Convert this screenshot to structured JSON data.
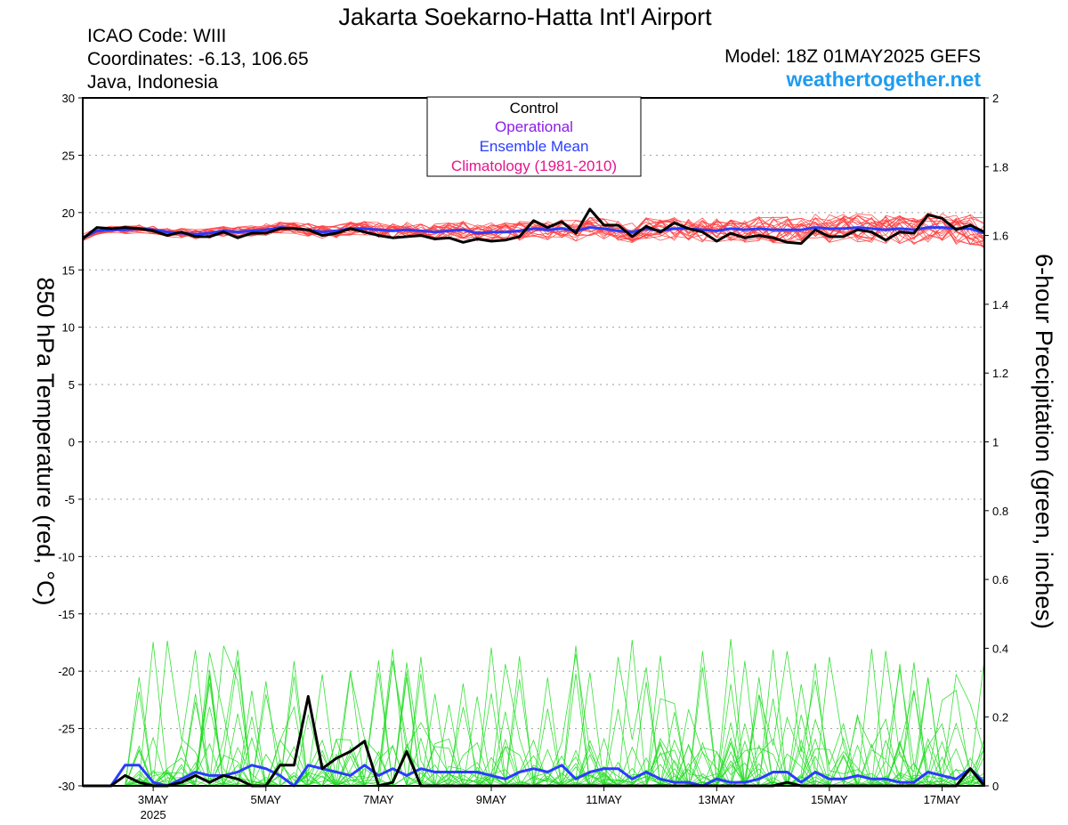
{
  "header": {
    "title": "Jakarta Soekarno-Hatta Int'l Airport",
    "icao": "ICAO Code: WIII",
    "coordinates": "Coordinates: -6.13, 106.65",
    "region": "Java, Indonesia",
    "model": "Model: 18Z 01MAY2025 GEFS",
    "site": "weathertogether.net"
  },
  "colors": {
    "control": "#000000",
    "operational": "#8a1ee8",
    "ensemble_mean": "#2a3cff",
    "climatology": "#e8148c",
    "temperature_members": "#ff4040",
    "precip_members": "#22dd22",
    "site": "#1e9cf0"
  },
  "legend": {
    "items": [
      {
        "label": "Control",
        "color": "#000000"
      },
      {
        "label": "Operational",
        "color": "#8a1ee8"
      },
      {
        "label": "Ensemble Mean",
        "color": "#2a3cff"
      },
      {
        "label": "Climatology (1981-2010)",
        "color": "#e8148c"
      }
    ]
  },
  "chart_data": {
    "type": "line",
    "x_unit": "days",
    "x_range_day": [
      1.75,
      17.75
    ],
    "x_ticks": [
      {
        "day": 3,
        "label": "3MAY",
        "sublabel": "2025"
      },
      {
        "day": 5,
        "label": "5MAY",
        "sublabel": ""
      },
      {
        "day": 7,
        "label": "7MAY",
        "sublabel": ""
      },
      {
        "day": 9,
        "label": "9MAY",
        "sublabel": ""
      },
      {
        "day": 11,
        "label": "11MAY",
        "sublabel": ""
      },
      {
        "day": 13,
        "label": "13MAY",
        "sublabel": ""
      },
      {
        "day": 15,
        "label": "15MAY",
        "sublabel": ""
      },
      {
        "day": 17,
        "label": "17MAY",
        "sublabel": ""
      }
    ],
    "y_left": {
      "label": "850 hPa Temperature (red, °C)",
      "range": [
        -30,
        30
      ],
      "ticks": [
        -30,
        -25,
        -20,
        -15,
        -10,
        -5,
        0,
        5,
        10,
        15,
        20,
        25,
        30
      ]
    },
    "y_right": {
      "label": "6-hour Precipitation (green, inches)",
      "range": [
        0,
        2
      ],
      "ticks": [
        "0",
        "0.2",
        "0.4",
        "0.6",
        "0.8",
        "1",
        "1.2",
        "1.4",
        "1.6",
        "1.8",
        "2"
      ]
    },
    "grid": "horizontal dotted",
    "legend_position": "top-center",
    "series": [
      {
        "name": "Control",
        "axis": "left",
        "start_day": 1.75,
        "step_days": 0.25,
        "values": [
          17.7,
          18.7,
          18.6,
          18.7,
          18.6,
          18.4,
          18.0,
          18.3,
          17.9,
          17.9,
          18.3,
          17.8,
          18.2,
          18.2,
          18.6,
          18.6,
          18.5,
          18.0,
          18.2,
          18.6,
          18.3,
          18.0,
          17.8,
          17.9,
          18.0,
          17.7,
          17.8,
          17.4,
          17.7,
          17.5,
          17.6,
          17.9,
          19.3,
          18.7,
          19.2,
          18.2,
          20.3,
          18.9,
          18.9,
          17.9,
          18.8,
          18.3,
          19.1,
          18.6,
          18.3,
          17.5,
          18.2,
          17.8,
          18.0,
          17.8,
          17.4,
          17.3,
          18.5,
          17.9,
          17.9,
          18.5,
          18.3,
          17.6,
          18.3,
          18.2,
          19.8,
          19.5,
          18.5,
          18.9,
          18.3
        ]
      },
      {
        "name": "Ensemble Mean",
        "axis": "left",
        "start_day": 1.75,
        "step_days": 0.25,
        "values": [
          17.8,
          18.4,
          18.5,
          18.5,
          18.6,
          18.5,
          18.3,
          18.2,
          18.1,
          18.2,
          18.4,
          18.3,
          18.4,
          18.5,
          18.7,
          18.6,
          18.5,
          18.3,
          18.4,
          18.6,
          18.6,
          18.5,
          18.4,
          18.5,
          18.4,
          18.3,
          18.4,
          18.5,
          18.2,
          18.3,
          18.3,
          18.4,
          18.6,
          18.5,
          18.6,
          18.4,
          18.7,
          18.6,
          18.4,
          18.3,
          18.6,
          18.4,
          18.6,
          18.6,
          18.5,
          18.4,
          18.6,
          18.5,
          18.6,
          18.5,
          18.5,
          18.5,
          18.7,
          18.6,
          18.6,
          18.7,
          18.6,
          18.5,
          18.6,
          18.5,
          18.7,
          18.7,
          18.6,
          18.6,
          18.2
        ]
      },
      {
        "name": "Control",
        "axis": "right",
        "start_day": 1.75,
        "step_days": 0.25,
        "values": [
          0.0,
          0.0,
          0.0,
          0.03,
          0.01,
          0.0,
          0.0,
          0.01,
          0.03,
          0.01,
          0.03,
          0.02,
          0.0,
          0.0,
          0.06,
          0.06,
          0.26,
          0.05,
          0.08,
          0.1,
          0.13,
          0.0,
          0.01,
          0.1,
          0.0,
          0.0,
          0.0,
          0.0,
          0.0,
          0.0,
          0.0,
          0.0,
          0.0,
          0.0,
          0.0,
          0.0,
          0.0,
          0.0,
          0.0,
          0.0,
          0.0,
          0.0,
          0.0,
          0.0,
          0.0,
          0.0,
          0.0,
          0.0,
          0.0,
          0.0,
          0.01,
          0.0,
          0.0,
          0.0,
          0.0,
          0.0,
          0.0,
          0.0,
          0.0,
          0.0,
          0.0,
          0.0,
          0.0,
          0.05,
          0.0
        ]
      },
      {
        "name": "Ensemble Mean",
        "axis": "right",
        "start_day": 1.75,
        "step_days": 0.25,
        "values": [
          0.0,
          0.0,
          0.0,
          0.06,
          0.06,
          0.01,
          0.0,
          0.02,
          0.04,
          0.03,
          0.03,
          0.04,
          0.06,
          0.05,
          0.03,
          0.0,
          0.06,
          0.05,
          0.04,
          0.03,
          0.06,
          0.03,
          0.05,
          0.03,
          0.05,
          0.04,
          0.04,
          0.04,
          0.04,
          0.03,
          0.02,
          0.04,
          0.05,
          0.04,
          0.06,
          0.02,
          0.04,
          0.05,
          0.05,
          0.02,
          0.04,
          0.02,
          0.01,
          0.01,
          0.0,
          0.02,
          0.01,
          0.01,
          0.02,
          0.04,
          0.04,
          0.01,
          0.04,
          0.02,
          0.02,
          0.03,
          0.02,
          0.02,
          0.01,
          0.01,
          0.04,
          0.03,
          0.02,
          0.05,
          0.01
        ]
      }
    ]
  }
}
